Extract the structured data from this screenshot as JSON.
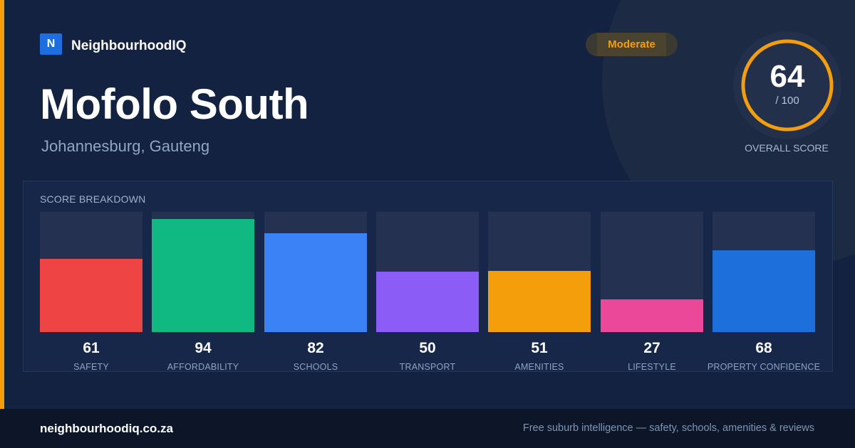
{
  "brand": {
    "logo_letter": "N",
    "name": "NeighbourhoodIQ"
  },
  "badge": {
    "label": "Moderate",
    "color": "#f59e0b"
  },
  "suburb": {
    "name": "Mofolo South",
    "location": "Johannesburg, Gauteng"
  },
  "overall": {
    "score": 64,
    "score_text": "64",
    "max_text": "/ 100",
    "label": "OVERALL SCORE",
    "ring_color": "#f59e0b"
  },
  "breakdown": {
    "title": "SCORE BREAKDOWN",
    "items": [
      {
        "label": "SAFETY",
        "value": 61,
        "value_text": "61",
        "color": "#ef4444"
      },
      {
        "label": "AFFORDABILITY",
        "value": 94,
        "value_text": "94",
        "color": "#10b981"
      },
      {
        "label": "SCHOOLS",
        "value": 82,
        "value_text": "82",
        "color": "#3b82f6"
      },
      {
        "label": "TRANSPORT",
        "value": 50,
        "value_text": "50",
        "color": "#8b5cf6"
      },
      {
        "label": "AMENITIES",
        "value": 51,
        "value_text": "51",
        "color": "#f59e0b"
      },
      {
        "label": "LIFESTYLE",
        "value": 27,
        "value_text": "27",
        "color": "#ec4899"
      },
      {
        "label": "PROPERTY CONFIDENCE",
        "value": 68,
        "value_text": "68",
        "color": "#1d6fdb"
      }
    ]
  },
  "footer": {
    "url": "neighbourhoodiq.co.za",
    "tagline": "Free suburb intelligence — safety, schools, amenities & reviews"
  }
}
